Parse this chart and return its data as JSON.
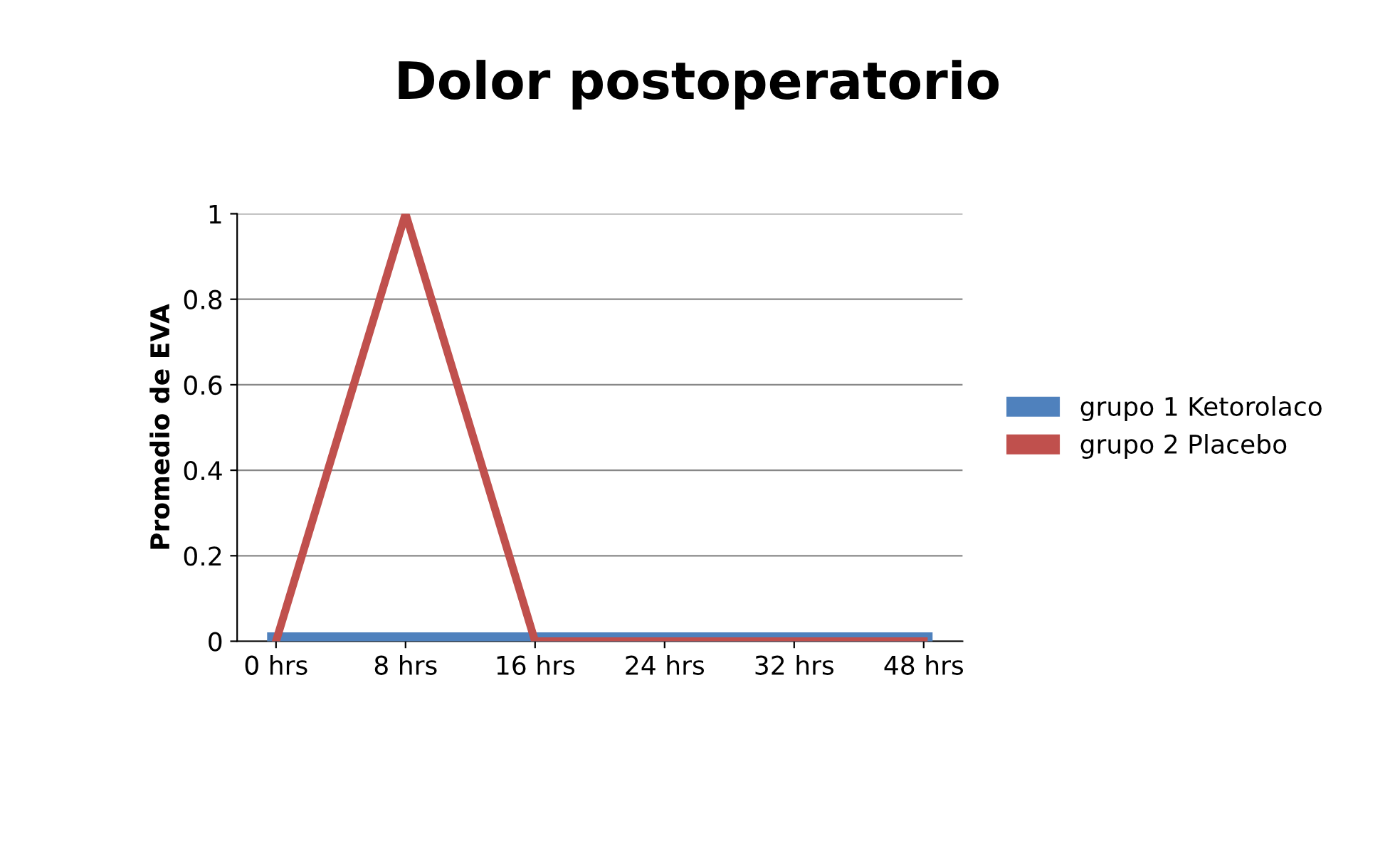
{
  "chart_data": {
    "type": "line",
    "title": "Dolor postoperatorio",
    "ylabel": "Promedio de EVA",
    "categories": [
      "0 hrs",
      "8 hrs",
      "16 hrs",
      "24 hrs",
      "32 hrs",
      "48 hrs"
    ],
    "series": [
      {
        "name": "grupo 1 Ketorolaco",
        "color": "#4f81bd",
        "values": [
          0,
          0,
          0,
          0,
          0,
          0
        ]
      },
      {
        "name": "grupo 2 Placebo",
        "color": "#c0504d",
        "values": [
          0,
          1,
          0,
          0,
          0,
          0
        ]
      }
    ],
    "ylim": [
      0,
      1
    ],
    "yticks": [
      0,
      0.2,
      0.4,
      0.6,
      0.8,
      1
    ],
    "grid": "y",
    "legend": "right",
    "marker": "none",
    "line_style": "solid"
  }
}
